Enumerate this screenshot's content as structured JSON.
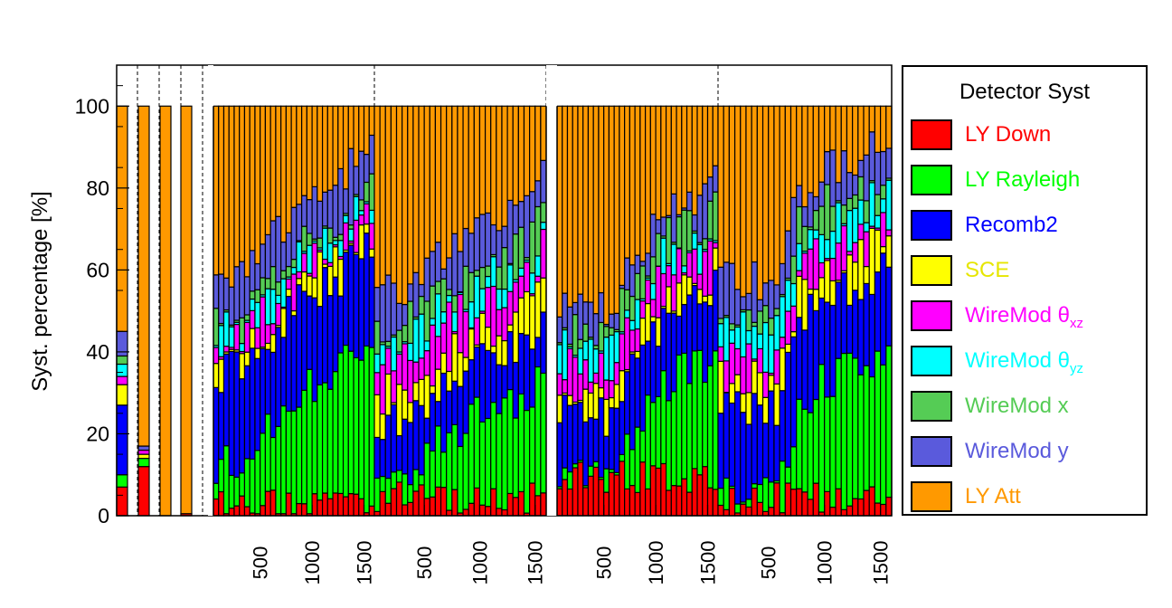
{
  "chart_data": {
    "type": "bar",
    "stacked": true,
    "ylabel": "Syst. percentage [%]",
    "ylim": [
      0,
      110
    ],
    "yticks": [
      0,
      20,
      40,
      60,
      80,
      100
    ],
    "xtick_labels": [
      "500",
      "1000",
      "1500"
    ],
    "grid": false,
    "legend_placement": "right",
    "legend_title": "Detector Syst",
    "series": [
      {
        "name": "LY Down",
        "color": "#ff0000"
      },
      {
        "name": "LY Rayleigh",
        "color": "#00ff00"
      },
      {
        "name": "Recomb2",
        "color": "#0000ff"
      },
      {
        "name": "SCE",
        "color": "#ffff00"
      },
      {
        "name": "WireMod θxz",
        "color": "#ff00ff"
      },
      {
        "name": "WireMod θyz",
        "color": "#00ffff"
      },
      {
        "name": "WireMod x",
        "color": "#55cc55"
      },
      {
        "name": "WireMod y",
        "color": "#5a5adc"
      },
      {
        "name": "LY Att",
        "color": "#ff9900"
      }
    ],
    "small_bars": [
      [
        7,
        3,
        17,
        5,
        2,
        3,
        2,
        6,
        55
      ],
      [
        12,
        2,
        0,
        1,
        1,
        0,
        0,
        1,
        83
      ],
      [
        0,
        0,
        0,
        0,
        0,
        0,
        0,
        0,
        100
      ],
      [
        0.5,
        0,
        0,
        0,
        0,
        0,
        0,
        0,
        99.5
      ]
    ],
    "panels": [
      {
        "bins": 31,
        "boundaries": [
          2,
          17,
          51,
          57,
          62,
          67,
          71,
          88,
          100
        ],
        "boundary_points": [
          [
            0,
            2
          ],
          [
            6,
            10
          ],
          [
            16,
            55
          ],
          [
            18,
            57
          ],
          [
            20,
            65
          ],
          [
            24,
            72
          ],
          [
            27,
            85
          ],
          [
            30,
            93
          ]
        ]
      },
      {
        "bins": 31,
        "boundaries": [
          3,
          12,
          32,
          43,
          54,
          62,
          70,
          82,
          100
        ],
        "boundary_points": [
          [
            0,
            5
          ],
          [
            5,
            7
          ],
          [
            13,
            35
          ],
          [
            18,
            47
          ],
          [
            24,
            56
          ],
          [
            28,
            65
          ],
          [
            30,
            88
          ]
        ]
      },
      {
        "bins": 31,
        "boundaries": [
          8,
          11,
          35,
          42,
          52,
          58,
          65,
          74,
          100
        ],
        "boundary_points": [
          [
            0,
            9
          ],
          [
            9,
            4
          ],
          [
            17,
            57
          ],
          [
            20,
            72
          ],
          [
            24,
            80
          ],
          [
            28,
            85
          ],
          [
            30,
            95
          ]
        ]
      },
      {
        "bins": 31,
        "boundaries": [
          3,
          8,
          40,
          50,
          58,
          68,
          76,
          87,
          100
        ],
        "boundary_points": [
          [
            0,
            4
          ],
          [
            10,
            0
          ],
          [
            14,
            62
          ],
          [
            17,
            75
          ],
          [
            22,
            85
          ],
          [
            26,
            92
          ],
          [
            30,
            99
          ]
        ]
      }
    ],
    "panel_xticks": [
      500,
      1000,
      1500
    ],
    "bin_width": 50
  }
}
